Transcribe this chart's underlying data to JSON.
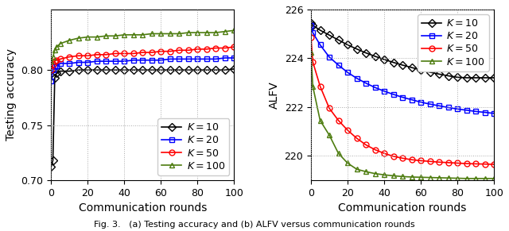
{
  "subplot_a": {
    "xlabel": "Communication rounds",
    "ylabel": "Testing accuracy",
    "xlim": [
      0,
      100
    ],
    "ylim": [
      0.7,
      0.855
    ],
    "yticks": [
      0.7,
      0.75,
      0.8
    ],
    "xticks": [
      0,
      20,
      40,
      60,
      80,
      100
    ],
    "caption": "(a)",
    "series": [
      {
        "label": "$K = 10$",
        "color": "black",
        "marker": "D",
        "x": [
          0,
          1,
          2,
          3,
          5,
          10,
          15,
          20,
          25,
          30,
          35,
          40,
          45,
          50,
          55,
          60,
          65,
          70,
          75,
          80,
          85,
          90,
          95,
          100
        ],
        "y": [
          0.712,
          0.718,
          0.793,
          0.797,
          0.799,
          0.799,
          0.8,
          0.8,
          0.8,
          0.8,
          0.8,
          0.8,
          0.8,
          0.8,
          0.8,
          0.8,
          0.8,
          0.8,
          0.8,
          0.8,
          0.8,
          0.8,
          0.8,
          0.801
        ]
      },
      {
        "label": "$K = 20$",
        "color": "blue",
        "marker": "s",
        "x": [
          0,
          1,
          2,
          3,
          5,
          10,
          15,
          20,
          25,
          30,
          35,
          40,
          45,
          50,
          55,
          60,
          65,
          70,
          75,
          80,
          85,
          90,
          95,
          100
        ],
        "y": [
          0.79,
          0.8,
          0.803,
          0.804,
          0.806,
          0.806,
          0.807,
          0.807,
          0.808,
          0.808,
          0.808,
          0.808,
          0.809,
          0.809,
          0.809,
          0.809,
          0.81,
          0.81,
          0.81,
          0.81,
          0.81,
          0.81,
          0.811,
          0.811
        ]
      },
      {
        "label": "$K = 50$",
        "color": "red",
        "marker": "o",
        "x": [
          0,
          1,
          2,
          3,
          5,
          10,
          15,
          20,
          25,
          30,
          35,
          40,
          45,
          50,
          55,
          60,
          65,
          70,
          75,
          80,
          85,
          90,
          95,
          100
        ],
        "y": [
          0.8,
          0.805,
          0.808,
          0.809,
          0.81,
          0.812,
          0.813,
          0.813,
          0.814,
          0.814,
          0.815,
          0.815,
          0.815,
          0.816,
          0.816,
          0.817,
          0.817,
          0.818,
          0.818,
          0.819,
          0.819,
          0.82,
          0.82,
          0.821
        ]
      },
      {
        "label": "$K = 100$",
        "color": "#4d7c0f",
        "marker": "^",
        "x": [
          0,
          1,
          2,
          3,
          5,
          10,
          15,
          20,
          25,
          30,
          35,
          40,
          45,
          50,
          55,
          60,
          65,
          70,
          75,
          80,
          85,
          90,
          95,
          100
        ],
        "y": [
          0.808,
          0.812,
          0.818,
          0.821,
          0.824,
          0.827,
          0.829,
          0.83,
          0.83,
          0.831,
          0.831,
          0.832,
          0.832,
          0.832,
          0.833,
          0.833,
          0.833,
          0.833,
          0.834,
          0.834,
          0.834,
          0.834,
          0.835,
          0.836
        ]
      }
    ]
  },
  "subplot_b": {
    "xlabel": "Communication rounds",
    "ylabel": "ALFV",
    "xlim": [
      0,
      100
    ],
    "ylim": [
      219.0,
      226.0
    ],
    "yticks": [
      220,
      222,
      224,
      226
    ],
    "xticks": [
      0,
      20,
      40,
      60,
      80,
      100
    ],
    "caption": "(b)",
    "series": [
      {
        "label": "$K = 10$",
        "color": "black",
        "marker": "D",
        "x": [
          0,
          1,
          5,
          10,
          15,
          20,
          25,
          30,
          35,
          40,
          45,
          50,
          55,
          60,
          65,
          70,
          75,
          80,
          85,
          90,
          95,
          100
        ],
        "y": [
          225.45,
          225.35,
          225.15,
          224.95,
          224.75,
          224.55,
          224.38,
          224.22,
          224.08,
          223.95,
          223.83,
          223.72,
          223.62,
          223.52,
          223.43,
          223.35,
          223.28,
          223.22,
          223.2,
          223.2,
          223.2,
          223.2
        ]
      },
      {
        "label": "$K = 20$",
        "color": "blue",
        "marker": "s",
        "x": [
          0,
          1,
          5,
          10,
          15,
          20,
          25,
          30,
          35,
          40,
          45,
          50,
          55,
          60,
          65,
          70,
          75,
          80,
          85,
          90,
          95,
          100
        ],
        "y": [
          225.35,
          225.05,
          224.55,
          224.05,
          223.72,
          223.42,
          223.18,
          222.98,
          222.8,
          222.65,
          222.52,
          222.4,
          222.3,
          222.2,
          222.12,
          222.05,
          221.98,
          221.92,
          221.87,
          221.82,
          221.78,
          221.74
        ]
      },
      {
        "label": "$K = 50$",
        "color": "red",
        "marker": "o",
        "x": [
          0,
          1,
          5,
          10,
          15,
          20,
          25,
          30,
          35,
          40,
          45,
          50,
          55,
          60,
          65,
          70,
          75,
          80,
          85,
          90,
          95,
          100
        ],
        "y": [
          224.85,
          223.85,
          222.85,
          221.95,
          221.45,
          221.05,
          220.72,
          220.45,
          220.25,
          220.1,
          219.98,
          219.9,
          219.84,
          219.8,
          219.77,
          219.74,
          219.72,
          219.7,
          219.68,
          219.67,
          219.66,
          219.65
        ]
      },
      {
        "label": "$K = 100$",
        "color": "#4d7c0f",
        "marker": "^",
        "x": [
          0,
          1,
          5,
          10,
          15,
          20,
          25,
          30,
          35,
          40,
          45,
          50,
          55,
          60,
          65,
          70,
          75,
          80,
          85,
          90,
          95,
          100
        ],
        "y": [
          224.25,
          222.85,
          221.45,
          220.85,
          220.1,
          219.7,
          219.45,
          219.35,
          219.27,
          219.22,
          219.18,
          219.15,
          219.13,
          219.12,
          219.11,
          219.1,
          219.09,
          219.08,
          219.07,
          219.07,
          219.07,
          219.07
        ]
      }
    ]
  },
  "fig_caption": "Fig. 3.   (a) Testing accuracy and (b) ALFV versus communication rounds",
  "legend_loc_a": "lower right",
  "legend_loc_b": "upper right",
  "background_color": "white",
  "grid_color": "#aaaaaa",
  "grid_linestyle": ":",
  "grid_linewidth": 0.7,
  "marker_size": 5,
  "line_width": 1.2,
  "tick_fontsize": 9,
  "label_fontsize": 10,
  "legend_fontsize": 9,
  "caption_fontsize": 11
}
